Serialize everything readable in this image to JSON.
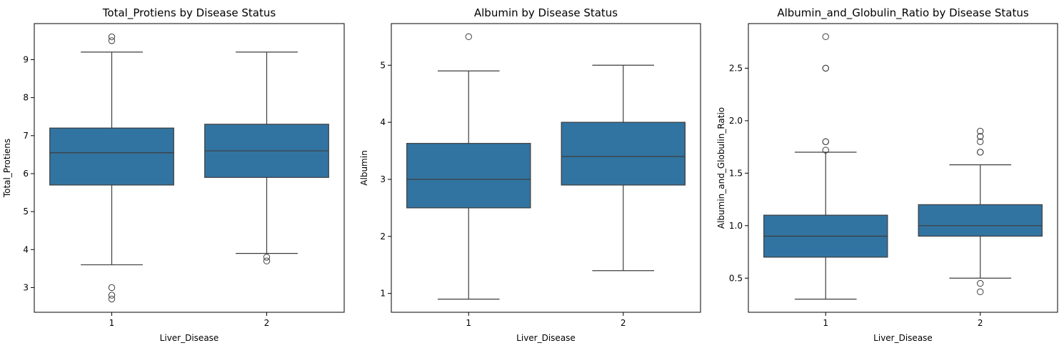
{
  "colors": {
    "box_fill": "#3274a1",
    "line": "#3d3d3d",
    "frame": "#000000"
  },
  "chart_data": [
    {
      "type": "box",
      "title": "Total_Protiens by Disease Status",
      "xlabel": "Liver_Disease",
      "ylabel": "Total_Protiens",
      "categories": [
        "1",
        "2"
      ],
      "ylim": [
        2.35,
        9.95
      ],
      "yticks": [
        3,
        4,
        5,
        6,
        7,
        8,
        9
      ],
      "grid": false,
      "boxes": [
        {
          "category": "1",
          "whisker_low": 3.6,
          "q1": 5.7,
          "median": 6.55,
          "q3": 7.2,
          "whisker_high": 9.2,
          "outliers": [
            2.7,
            2.8,
            3.0,
            9.5,
            9.6
          ]
        },
        {
          "category": "2",
          "whisker_low": 3.9,
          "q1": 5.9,
          "median": 6.6,
          "q3": 7.3,
          "whisker_high": 9.2,
          "outliers": [
            3.7,
            3.8
          ]
        }
      ]
    },
    {
      "type": "box",
      "title": "Albumin by Disease Status",
      "xlabel": "Liver_Disease",
      "ylabel": "Albumin",
      "categories": [
        "1",
        "2"
      ],
      "ylim": [
        0.67,
        5.73
      ],
      "yticks": [
        1,
        2,
        3,
        4,
        5
      ],
      "grid": false,
      "boxes": [
        {
          "category": "1",
          "whisker_low": 0.9,
          "q1": 2.5,
          "median": 3.0,
          "q3": 3.63,
          "whisker_high": 4.9,
          "outliers": [
            5.5
          ]
        },
        {
          "category": "2",
          "whisker_low": 1.4,
          "q1": 2.9,
          "median": 3.4,
          "q3": 4.0,
          "whisker_high": 5.0,
          "outliers": []
        }
      ]
    },
    {
      "type": "box",
      "title": "Albumin_and_Globulin_Ratio by Disease Status",
      "xlabel": "Liver_Disease",
      "ylabel": "Albumin_and_Globulin_Ratio",
      "categories": [
        "1",
        "2"
      ],
      "ylim": [
        0.175,
        2.925
      ],
      "yticks": [
        0.5,
        1.0,
        1.5,
        2.0,
        2.5
      ],
      "ytick_labels": [
        "0.5",
        "1.0",
        "1.5",
        "2.0",
        "2.5"
      ],
      "grid": false,
      "boxes": [
        {
          "category": "1",
          "whisker_low": 0.3,
          "q1": 0.7,
          "median": 0.9,
          "q3": 1.1,
          "whisker_high": 1.7,
          "outliers": [
            1.72,
            1.8,
            1.8,
            2.5,
            2.5,
            2.8
          ]
        },
        {
          "category": "2",
          "whisker_low": 0.5,
          "q1": 0.9,
          "median": 1.0,
          "q3": 1.2,
          "whisker_high": 1.58,
          "outliers": [
            0.37,
            0.45,
            1.7,
            1.7,
            1.8,
            1.85,
            1.85,
            1.9
          ]
        }
      ]
    }
  ]
}
